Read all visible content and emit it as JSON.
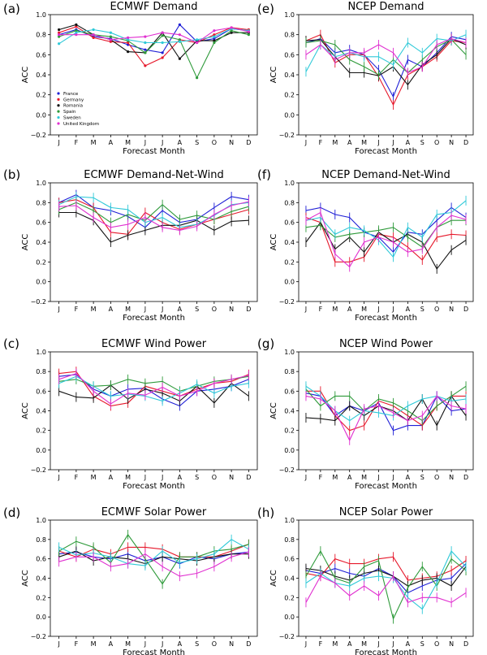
{
  "colors": {
    "France": "#1f1fd6",
    "Germany": "#e6182b",
    "Romania": "#111111",
    "Spain": "#2e9a3a",
    "Sweden": "#2ec9d8",
    "United Kingdom": "#e02fd0"
  },
  "months": [
    "J",
    "F",
    "M",
    "A",
    "M",
    "J",
    "J",
    "A",
    "S",
    "O",
    "N",
    "D"
  ],
  "yticks": [
    "−0.2",
    "0.0",
    "0.2",
    "0.4",
    "0.6",
    "0.8",
    "1.0"
  ],
  "chart_data": [
    {
      "type": "line",
      "panel": "(a)",
      "title": "ECMWF Demand",
      "xlabel": "Forecast Month",
      "ylabel": "ACC",
      "ylim": [
        -0.2,
        1.0
      ],
      "error_bars": false,
      "legend": [
        "France",
        "Germany",
        "Romania",
        "Spain",
        "Sweden",
        "United Kingdom"
      ],
      "legend_position": "bottom-left",
      "series": [
        {
          "name": "France",
          "values": [
            0.8,
            0.85,
            0.78,
            0.76,
            0.7,
            0.65,
            0.62,
            0.9,
            0.73,
            0.76,
            0.86,
            0.84
          ]
        },
        {
          "name": "Germany",
          "values": [
            0.82,
            0.88,
            0.77,
            0.73,
            0.72,
            0.49,
            0.57,
            0.75,
            0.72,
            0.8,
            0.87,
            0.85
          ]
        },
        {
          "name": "Romania",
          "values": [
            0.85,
            0.9,
            0.8,
            0.75,
            0.63,
            0.62,
            0.82,
            0.56,
            0.74,
            0.74,
            0.82,
            0.82
          ]
        },
        {
          "name": "Spain",
          "values": [
            0.78,
            0.84,
            0.8,
            0.78,
            0.74,
            0.62,
            0.79,
            0.75,
            0.37,
            0.72,
            0.84,
            0.8
          ]
        },
        {
          "name": "Sweden",
          "values": [
            0.71,
            0.82,
            0.85,
            0.82,
            0.75,
            0.72,
            0.72,
            0.73,
            0.75,
            0.78,
            0.86,
            0.84
          ]
        },
        {
          "name": "United Kingdom",
          "values": [
            0.8,
            0.8,
            0.8,
            0.75,
            0.77,
            0.78,
            0.82,
            0.8,
            0.72,
            0.84,
            0.87,
            0.83
          ]
        }
      ]
    },
    {
      "type": "line",
      "panel": "(b)",
      "title": "ECMWF Demand-Net-Wind",
      "xlabel": "Forecast Month",
      "ylabel": "ACC",
      "ylim": [
        -0.2,
        1.0
      ],
      "error_bars": true,
      "series": [
        {
          "name": "France",
          "values": [
            0.8,
            0.88,
            0.75,
            0.72,
            0.66,
            0.55,
            0.72,
            0.6,
            0.63,
            0.75,
            0.86,
            0.83
          ]
        },
        {
          "name": "Germany",
          "values": [
            0.8,
            0.83,
            0.75,
            0.5,
            0.48,
            0.7,
            0.6,
            0.53,
            0.58,
            0.63,
            0.68,
            0.73
          ]
        },
        {
          "name": "Romania",
          "values": [
            0.7,
            0.7,
            0.62,
            0.4,
            0.47,
            0.52,
            0.57,
            0.57,
            0.62,
            0.52,
            0.61,
            0.62
          ]
        },
        {
          "name": "Spain",
          "values": [
            0.73,
            0.8,
            0.72,
            0.6,
            0.68,
            0.62,
            0.78,
            0.63,
            0.67,
            0.63,
            0.71,
            0.76
          ]
        },
        {
          "name": "Sweden",
          "values": [
            0.78,
            0.86,
            0.85,
            0.75,
            0.73,
            0.6,
            0.65,
            0.55,
            0.58,
            0.67,
            0.78,
            0.8
          ]
        },
        {
          "name": "United Kingdom",
          "values": [
            0.76,
            0.77,
            0.65,
            0.55,
            0.58,
            0.65,
            0.55,
            0.52,
            0.56,
            0.68,
            0.77,
            0.81
          ]
        }
      ]
    },
    {
      "type": "line",
      "panel": "(c)",
      "title": "ECMWF Wind Power",
      "xlabel": "Forecast Month",
      "ylabel": "ACC",
      "ylim": [
        -0.2,
        1.0
      ],
      "error_bars": true,
      "series": [
        {
          "name": "France",
          "values": [
            0.75,
            0.77,
            0.62,
            0.55,
            0.62,
            0.63,
            0.52,
            0.45,
            0.6,
            0.62,
            0.65,
            0.72
          ]
        },
        {
          "name": "Germany",
          "values": [
            0.78,
            0.8,
            0.55,
            0.45,
            0.48,
            0.65,
            0.6,
            0.55,
            0.62,
            0.68,
            0.7,
            0.77
          ]
        },
        {
          "name": "Romania",
          "values": [
            0.6,
            0.54,
            0.53,
            0.66,
            0.52,
            0.62,
            0.58,
            0.5,
            0.65,
            0.48,
            0.68,
            0.55
          ]
        },
        {
          "name": "Spain",
          "values": [
            0.7,
            0.72,
            0.65,
            0.66,
            0.72,
            0.68,
            0.7,
            0.6,
            0.65,
            0.7,
            0.72,
            0.75
          ]
        },
        {
          "name": "Sweden",
          "values": [
            0.68,
            0.75,
            0.65,
            0.55,
            0.57,
            0.55,
            0.5,
            0.58,
            0.67,
            0.58,
            0.65,
            0.68
          ]
        },
        {
          "name": "United Kingdom",
          "values": [
            0.72,
            0.78,
            0.6,
            0.47,
            0.58,
            0.56,
            0.64,
            0.55,
            0.6,
            0.68,
            0.72,
            0.76
          ]
        }
      ]
    },
    {
      "type": "line",
      "panel": "(d)",
      "title": "ECMWF Solar Power",
      "xlabel": "Forecast Month",
      "ylabel": "ACC",
      "ylim": [
        -0.2,
        1.0
      ],
      "error_bars": true,
      "series": [
        {
          "name": "France",
          "values": [
            0.65,
            0.67,
            0.62,
            0.6,
            0.65,
            0.58,
            0.62,
            0.55,
            0.62,
            0.6,
            0.65,
            0.67
          ]
        },
        {
          "name": "Germany",
          "values": [
            0.68,
            0.62,
            0.7,
            0.65,
            0.72,
            0.72,
            0.7,
            0.62,
            0.62,
            0.62,
            0.68,
            0.75
          ]
        },
        {
          "name": "Romania",
          "values": [
            0.62,
            0.68,
            0.58,
            0.62,
            0.6,
            0.55,
            0.62,
            0.6,
            0.58,
            0.62,
            0.65,
            0.65
          ]
        },
        {
          "name": "Spain",
          "values": [
            0.68,
            0.78,
            0.72,
            0.56,
            0.85,
            0.6,
            0.34,
            0.62,
            0.62,
            0.68,
            0.7,
            0.75
          ]
        },
        {
          "name": "Sweden",
          "values": [
            0.72,
            0.64,
            0.66,
            0.62,
            0.55,
            0.53,
            0.68,
            0.56,
            0.6,
            0.65,
            0.8,
            0.7
          ]
        },
        {
          "name": "United Kingdom",
          "values": [
            0.57,
            0.62,
            0.62,
            0.52,
            0.55,
            0.65,
            0.52,
            0.42,
            0.45,
            0.52,
            0.62,
            0.67
          ]
        }
      ]
    },
    {
      "type": "line",
      "panel": "(e)",
      "title": "NCEP Demand",
      "xlabel": "Forecast Month",
      "ylabel": "ACC",
      "ylim": [
        -0.2,
        1.0
      ],
      "error_bars": true,
      "series": [
        {
          "name": "France",
          "values": [
            0.72,
            0.76,
            0.62,
            0.65,
            0.6,
            0.45,
            0.18,
            0.55,
            0.48,
            0.62,
            0.78,
            0.75
          ]
        },
        {
          "name": "Germany",
          "values": [
            0.74,
            0.8,
            0.52,
            0.6,
            0.6,
            0.38,
            0.1,
            0.4,
            0.48,
            0.58,
            0.74,
            0.72
          ]
        },
        {
          "name": "Romania",
          "values": [
            0.74,
            0.75,
            0.58,
            0.42,
            0.42,
            0.39,
            0.48,
            0.3,
            0.5,
            0.6,
            0.76,
            0.7
          ]
        },
        {
          "name": "Spain",
          "values": [
            0.72,
            0.74,
            0.7,
            0.55,
            0.48,
            0.4,
            0.55,
            0.42,
            0.55,
            0.68,
            0.75,
            0.6
          ]
        },
        {
          "name": "Sweden",
          "values": [
            0.43,
            0.7,
            0.58,
            0.62,
            0.58,
            0.58,
            0.5,
            0.72,
            0.62,
            0.76,
            0.74,
            0.8
          ]
        },
        {
          "name": "United Kingdom",
          "values": [
            0.6,
            0.7,
            0.55,
            0.62,
            0.62,
            0.7,
            0.62,
            0.42,
            0.48,
            0.7,
            0.76,
            0.72
          ]
        }
      ]
    },
    {
      "type": "line",
      "panel": "(f)",
      "title": "NCEP Demand-Net-Wind",
      "xlabel": "Forecast Month",
      "ylabel": "ACC",
      "ylim": [
        -0.2,
        1.0
      ],
      "error_bars": true,
      "series": [
        {
          "name": "France",
          "values": [
            0.72,
            0.75,
            0.68,
            0.65,
            0.5,
            0.45,
            0.3,
            0.5,
            0.48,
            0.62,
            0.75,
            0.65
          ]
        },
        {
          "name": "Germany",
          "values": [
            0.65,
            0.6,
            0.2,
            0.2,
            0.25,
            0.48,
            0.45,
            0.35,
            0.22,
            0.45,
            0.48,
            0.47
          ]
        },
        {
          "name": "Romania",
          "values": [
            0.4,
            0.6,
            0.33,
            0.45,
            0.3,
            0.5,
            0.4,
            0.48,
            0.4,
            0.13,
            0.32,
            0.42
          ]
        },
        {
          "name": "Spain",
          "values": [
            0.55,
            0.57,
            0.45,
            0.48,
            0.5,
            0.52,
            0.55,
            0.45,
            0.35,
            0.55,
            0.62,
            0.62
          ]
        },
        {
          "name": "Sweden",
          "values": [
            0.62,
            0.65,
            0.48,
            0.55,
            0.52,
            0.42,
            0.25,
            0.55,
            0.45,
            0.68,
            0.7,
            0.82
          ]
        },
        {
          "name": "United Kingdom",
          "values": [
            0.62,
            0.7,
            0.28,
            0.15,
            0.4,
            0.45,
            0.4,
            0.3,
            0.33,
            0.55,
            0.67,
            0.63
          ]
        }
      ]
    },
    {
      "type": "line",
      "panel": "(g)",
      "title": "NCEP Wind Power",
      "xlabel": "Forecast Month",
      "ylabel": "ACC",
      "ylim": [
        -0.2,
        1.0
      ],
      "error_bars": true,
      "series": [
        {
          "name": "France",
          "values": [
            0.58,
            0.55,
            0.35,
            0.45,
            0.4,
            0.48,
            0.2,
            0.25,
            0.25,
            0.55,
            0.4,
            0.42
          ]
        },
        {
          "name": "Germany",
          "values": [
            0.6,
            0.6,
            0.35,
            0.2,
            0.25,
            0.5,
            0.45,
            0.35,
            0.25,
            0.45,
            0.55,
            0.55
          ]
        },
        {
          "name": "Romania",
          "values": [
            0.33,
            0.32,
            0.3,
            0.45,
            0.35,
            0.45,
            0.4,
            0.3,
            0.52,
            0.25,
            0.55,
            0.35
          ]
        },
        {
          "name": "Spain",
          "values": [
            0.62,
            0.45,
            0.55,
            0.55,
            0.4,
            0.52,
            0.48,
            0.4,
            0.3,
            0.45,
            0.55,
            0.65
          ]
        },
        {
          "name": "Sweden",
          "values": [
            0.65,
            0.55,
            0.4,
            0.3,
            0.4,
            0.38,
            0.35,
            0.45,
            0.52,
            0.55,
            0.5,
            0.52
          ]
        },
        {
          "name": "United Kingdom",
          "values": [
            0.55,
            0.52,
            0.4,
            0.1,
            0.42,
            0.45,
            0.38,
            0.3,
            0.35,
            0.55,
            0.45,
            0.42
          ]
        }
      ]
    },
    {
      "type": "line",
      "panel": "(h)",
      "title": "NCEP Solar Power",
      "xlabel": "Forecast Month",
      "ylabel": "ACC",
      "ylim": [
        -0.2,
        1.0
      ],
      "error_bars": true,
      "series": [
        {
          "name": "France",
          "values": [
            0.48,
            0.45,
            0.5,
            0.45,
            0.42,
            0.5,
            0.42,
            0.25,
            0.32,
            0.38,
            0.4,
            0.55
          ]
        },
        {
          "name": "Germany",
          "values": [
            0.45,
            0.42,
            0.6,
            0.55,
            0.55,
            0.6,
            0.62,
            0.38,
            0.4,
            0.42,
            0.48,
            0.58
          ]
        },
        {
          "name": "Romania",
          "values": [
            0.5,
            0.48,
            0.42,
            0.38,
            0.45,
            0.48,
            0.42,
            0.32,
            0.38,
            0.4,
            0.32,
            0.52
          ]
        },
        {
          "name": "Spain",
          "values": [
            0.42,
            0.68,
            0.4,
            0.35,
            0.52,
            0.58,
            -0.02,
            0.3,
            0.52,
            0.32,
            0.6,
            0.48
          ]
        },
        {
          "name": "Sweden",
          "values": [
            0.35,
            0.45,
            0.35,
            0.32,
            0.4,
            0.42,
            0.4,
            0.2,
            0.08,
            0.35,
            0.68,
            0.52
          ]
        },
        {
          "name": "United Kingdom",
          "values": [
            0.15,
            0.42,
            0.35,
            0.22,
            0.32,
            0.22,
            0.42,
            0.15,
            0.2,
            0.2,
            0.15,
            0.25
          ]
        }
      ]
    }
  ]
}
